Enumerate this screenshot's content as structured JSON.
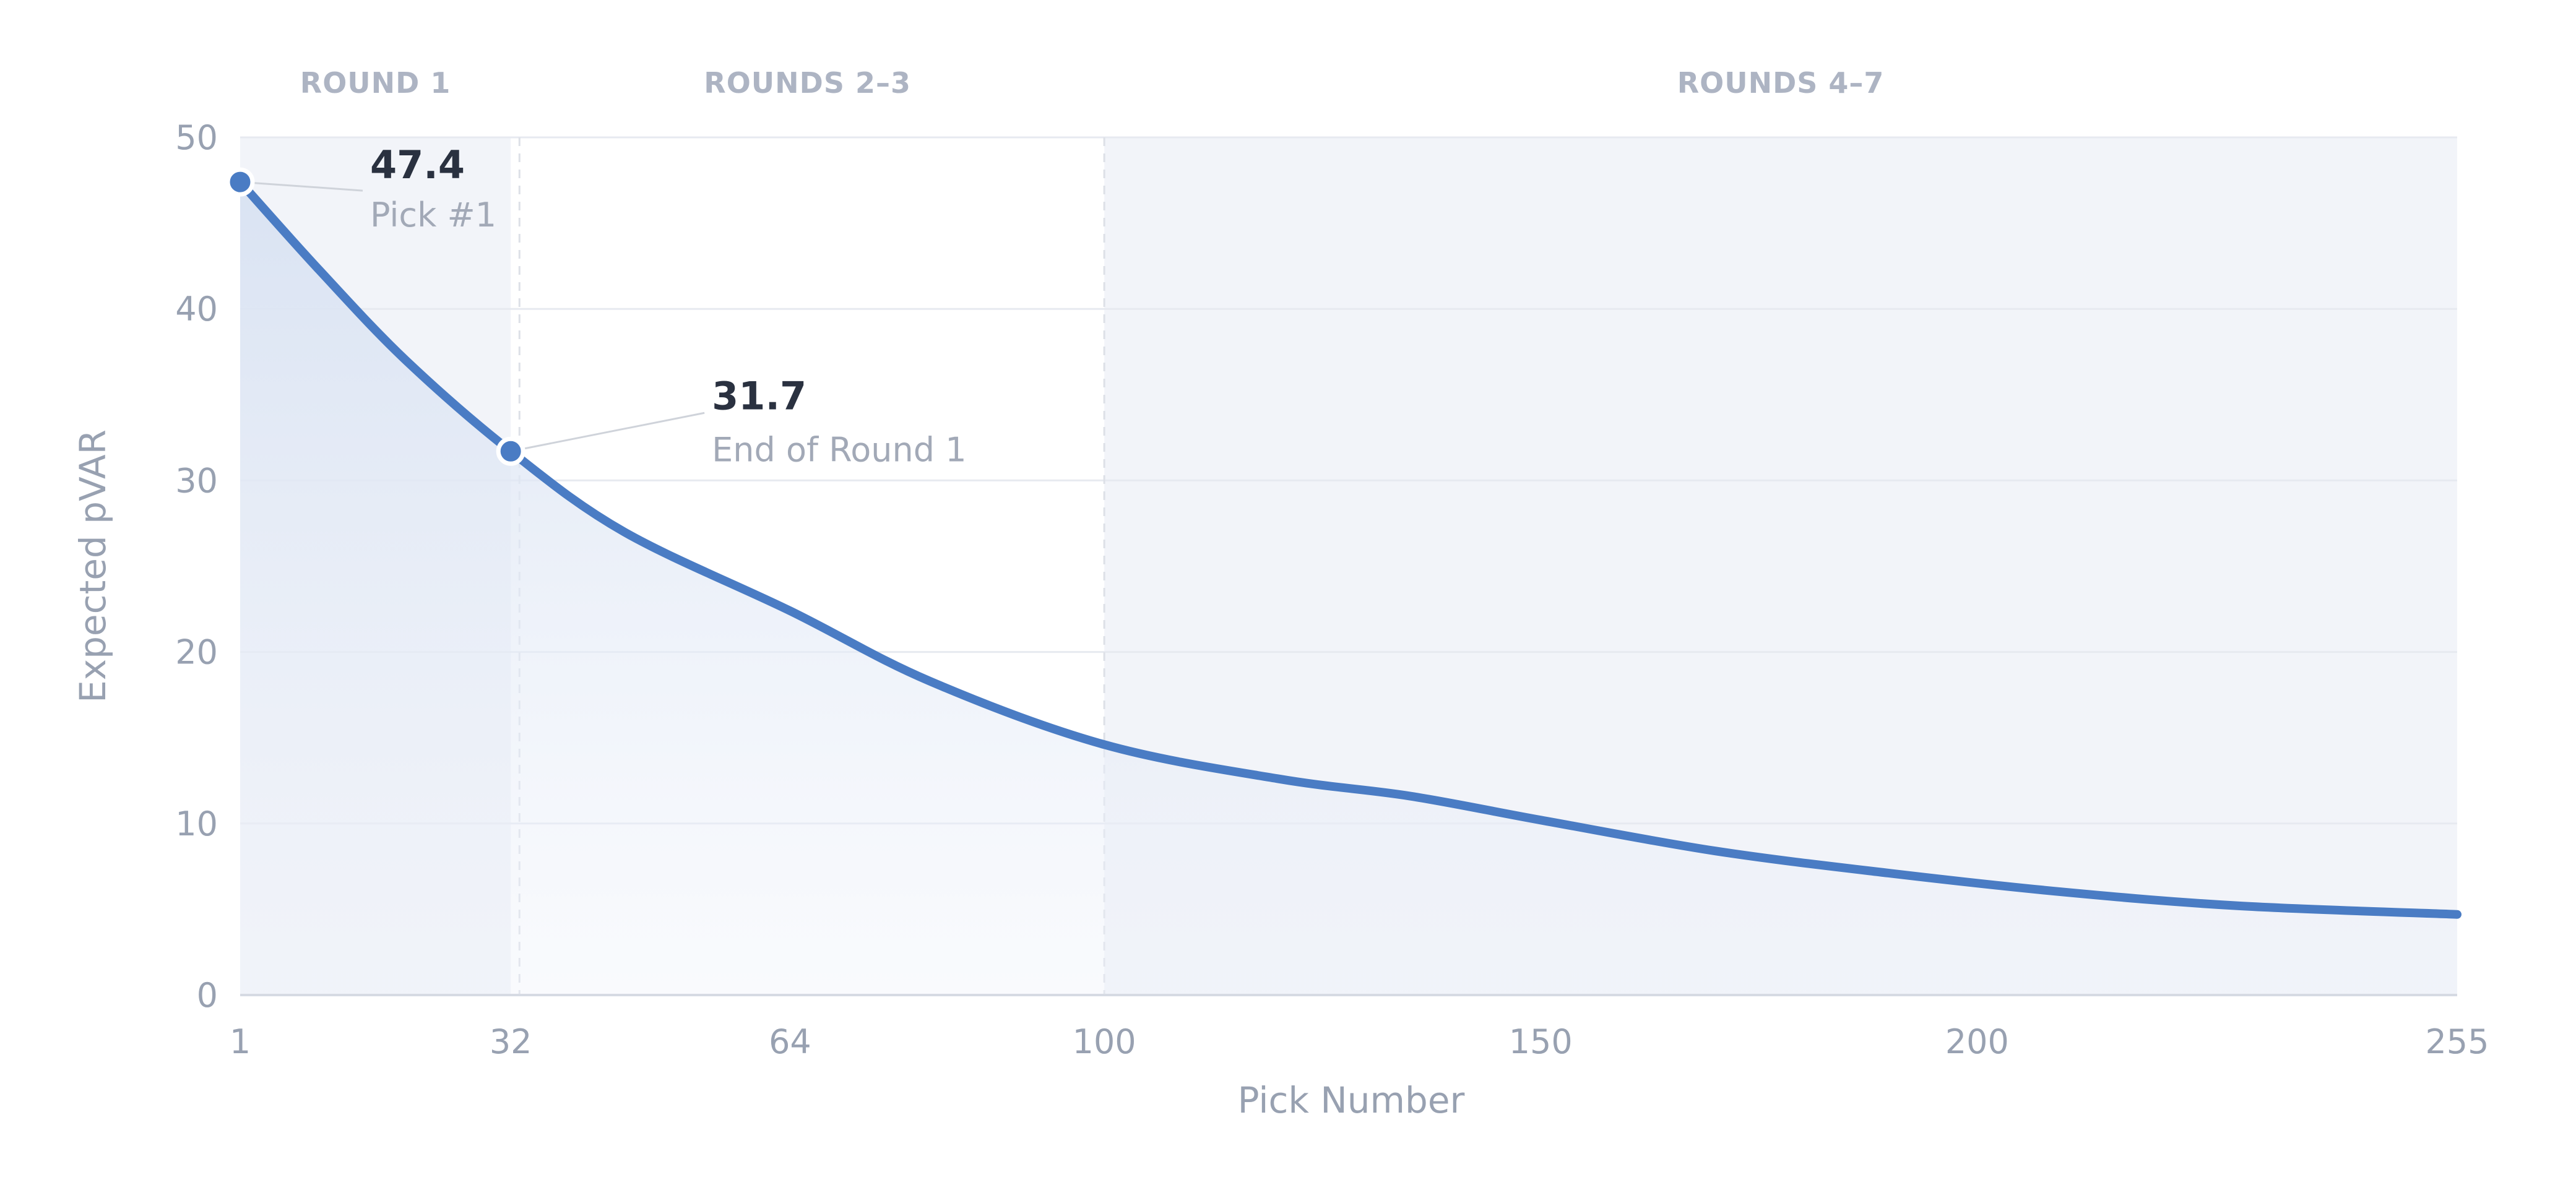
{
  "chart_data": {
    "type": "area",
    "title": "",
    "xlabel": "Pick Number",
    "ylabel": "Expected pVAR",
    "xlim": [
      1,
      255
    ],
    "ylim": [
      0,
      50
    ],
    "x_ticks": [
      1,
      32,
      64,
      100,
      150,
      200,
      255
    ],
    "y_ticks": [
      0,
      10,
      20,
      30,
      40,
      50
    ],
    "grid": true,
    "legend": "none",
    "colors": {
      "line": "#4a7cc4",
      "area": "#dfe6f3",
      "shade": "#f2f4f9",
      "gridline": "#e7eaf0",
      "axis": "#d6dae3",
      "divider": "#dde0e7"
    },
    "bands": [
      {
        "label": "ROUND 1",
        "x_start": 1,
        "x_end": 32,
        "shaded": true
      },
      {
        "label": "ROUNDS 2–3",
        "x_start": 32,
        "x_end": 100,
        "shaded": false
      },
      {
        "label": "ROUNDS 4–7",
        "x_start": 100,
        "x_end": 255,
        "shaded": true
      }
    ],
    "dividers": [
      33,
      100
    ],
    "series": [
      {
        "x": [
          1,
          10,
          20,
          32,
          45,
          64,
          80,
          100,
          120,
          135,
          150,
          170,
          190,
          210,
          230,
          255
        ],
        "values": [
          47.4,
          42.3,
          37.0,
          31.7,
          27.0,
          22.4,
          18.3,
          14.6,
          12.6,
          11.6,
          10.2,
          8.4,
          7.1,
          6.0,
          5.2,
          4.7
        ]
      }
    ],
    "annotations": [
      {
        "x": 1,
        "y": 47.4,
        "value": "47.4",
        "label": "Pick #1"
      },
      {
        "x": 32,
        "y": 31.7,
        "value": "31.7",
        "label": "End of Round 1"
      }
    ]
  }
}
